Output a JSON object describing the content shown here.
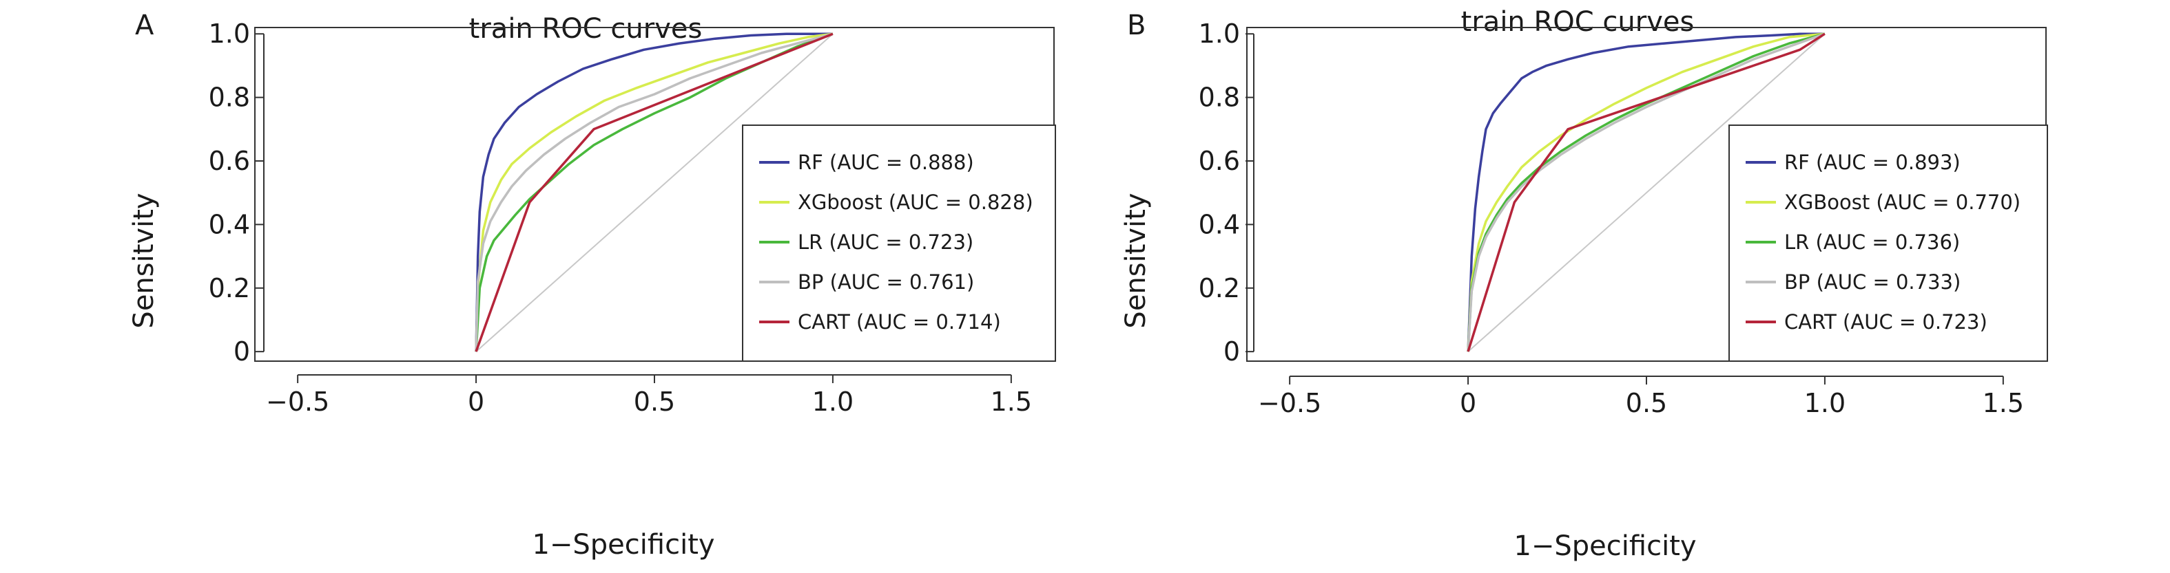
{
  "chart_data": [
    {
      "panel": "A",
      "type": "line",
      "title": "train ROC curves",
      "xlabel": "1−Specificity",
      "ylabel": "Sensitvity",
      "xlim": [
        -0.62,
        1.62
      ],
      "ylim": [
        -0.03,
        1.02
      ],
      "xticks": [
        -0.5,
        0,
        0.5,
        1.0,
        1.5
      ],
      "xtick_labels": [
        "−0.5",
        "0",
        "0.5",
        "1.0",
        "1.5"
      ],
      "yticks": [
        0,
        0.2,
        0.4,
        0.6,
        0.8,
        1.0
      ],
      "ytick_labels": [
        "0",
        "0.2",
        "0.4",
        "0.6",
        "0.8",
        "1.0"
      ],
      "grid": false,
      "legend_position": "bottom-right",
      "reference_line": {
        "x": [
          0,
          1
        ],
        "y": [
          0,
          1
        ],
        "color": "#c8c8c8"
      },
      "series": [
        {
          "name": "RF (AUC = 0.888)",
          "color": "#3b3f9e",
          "x": [
            0,
            0.005,
            0.01,
            0.02,
            0.035,
            0.05,
            0.08,
            0.12,
            0.17,
            0.23,
            0.3,
            0.38,
            0.47,
            0.57,
            0.67,
            0.77,
            0.87,
            0.95,
            1.0
          ],
          "y": [
            0,
            0.3,
            0.44,
            0.55,
            0.62,
            0.67,
            0.72,
            0.77,
            0.81,
            0.85,
            0.89,
            0.92,
            0.95,
            0.97,
            0.985,
            0.995,
            1.0,
            1.0,
            1.0
          ]
        },
        {
          "name": "XGboost (AUC = 0.828)",
          "color": "#d6ec4e",
          "x": [
            0,
            0.005,
            0.02,
            0.04,
            0.07,
            0.1,
            0.15,
            0.21,
            0.28,
            0.36,
            0.45,
            0.55,
            0.65,
            0.75,
            0.85,
            0.93,
            1.0
          ],
          "y": [
            0,
            0.2,
            0.38,
            0.47,
            0.54,
            0.59,
            0.64,
            0.69,
            0.74,
            0.79,
            0.83,
            0.87,
            0.91,
            0.94,
            0.97,
            0.99,
            1.0
          ]
        },
        {
          "name": "LR (AUC = 0.723)",
          "color": "#49b83c",
          "x": [
            0,
            0.01,
            0.03,
            0.05,
            0.08,
            0.11,
            0.15,
            0.2,
            0.26,
            0.33,
            0.41,
            0.5,
            0.6,
            0.7,
            0.8,
            0.9,
            1.0
          ],
          "y": [
            0,
            0.2,
            0.3,
            0.35,
            0.39,
            0.43,
            0.48,
            0.53,
            0.59,
            0.65,
            0.7,
            0.75,
            0.8,
            0.86,
            0.91,
            0.96,
            1.0
          ]
        },
        {
          "name": "BP (AUC = 0.761)",
          "color": "#bfbfbf",
          "x": [
            0,
            0.005,
            0.02,
            0.04,
            0.07,
            0.1,
            0.14,
            0.19,
            0.25,
            0.32,
            0.4,
            0.5,
            0.6,
            0.7,
            0.8,
            0.9,
            1.0
          ],
          "y": [
            0,
            0.22,
            0.34,
            0.41,
            0.47,
            0.52,
            0.57,
            0.62,
            0.67,
            0.72,
            0.77,
            0.81,
            0.86,
            0.9,
            0.94,
            0.97,
            1.0
          ]
        },
        {
          "name": "CART (AUC = 0.714)",
          "color": "#b5253a",
          "x": [
            0,
            0.15,
            0.33,
            1.0
          ],
          "y": [
            0,
            0.47,
            0.7,
            1.0
          ]
        }
      ]
    },
    {
      "panel": "B",
      "type": "line",
      "title": "train ROC curves",
      "xlabel": "1−Specificity",
      "ylabel": "Sensitvity",
      "xlim": [
        -0.62,
        1.62
      ],
      "ylim": [
        -0.03,
        1.02
      ],
      "xticks": [
        -0.5,
        0,
        0.5,
        1.0,
        1.5
      ],
      "xtick_labels": [
        "−0.5",
        "0",
        "0.5",
        "1.0",
        "1.5"
      ],
      "yticks": [
        0,
        0.2,
        0.4,
        0.6,
        0.8,
        1.0
      ],
      "ytick_labels": [
        "0",
        "0.2",
        "0.4",
        "0.6",
        "0.8",
        "1.0"
      ],
      "grid": false,
      "legend_position": "bottom-right",
      "reference_line": {
        "x": [
          0,
          1
        ],
        "y": [
          0,
          1
        ],
        "color": "#c8c8c8"
      },
      "series": [
        {
          "name": "RF (AUC = 0.893)",
          "color": "#3b3f9e",
          "x": [
            0,
            0.005,
            0.01,
            0.02,
            0.03,
            0.04,
            0.05,
            0.07,
            0.09,
            0.12,
            0.15,
            0.18,
            0.22,
            0.28,
            0.35,
            0.45,
            0.55,
            0.65,
            0.75,
            0.85,
            0.93,
            1.0
          ],
          "y": [
            0,
            0.15,
            0.3,
            0.45,
            0.55,
            0.63,
            0.7,
            0.75,
            0.78,
            0.82,
            0.86,
            0.88,
            0.9,
            0.92,
            0.94,
            0.96,
            0.97,
            0.98,
            0.99,
            0.995,
            1.0,
            1.0
          ]
        },
        {
          "name": "XGBoost (AUC = 0.770)",
          "color": "#d6ec4e",
          "x": [
            0,
            0.01,
            0.03,
            0.05,
            0.08,
            0.11,
            0.15,
            0.2,
            0.26,
            0.33,
            0.41,
            0.5,
            0.6,
            0.7,
            0.8,
            0.9,
            1.0
          ],
          "y": [
            0,
            0.22,
            0.34,
            0.41,
            0.47,
            0.52,
            0.58,
            0.63,
            0.68,
            0.73,
            0.78,
            0.83,
            0.88,
            0.92,
            0.96,
            0.99,
            1.0
          ]
        },
        {
          "name": "LR (AUC = 0.736)",
          "color": "#49b83c",
          "x": [
            0,
            0.01,
            0.03,
            0.05,
            0.08,
            0.11,
            0.15,
            0.2,
            0.26,
            0.33,
            0.41,
            0.5,
            0.6,
            0.7,
            0.8,
            0.9,
            1.0
          ],
          "y": [
            0,
            0.2,
            0.31,
            0.37,
            0.43,
            0.48,
            0.53,
            0.58,
            0.63,
            0.68,
            0.73,
            0.78,
            0.83,
            0.88,
            0.93,
            0.97,
            1.0
          ]
        },
        {
          "name": "BP (AUC = 0.733)",
          "color": "#bfbfbf",
          "x": [
            0,
            0.01,
            0.03,
            0.05,
            0.08,
            0.11,
            0.15,
            0.2,
            0.26,
            0.33,
            0.41,
            0.5,
            0.6,
            0.7,
            0.8,
            0.9,
            1.0
          ],
          "y": [
            0,
            0.19,
            0.3,
            0.36,
            0.42,
            0.47,
            0.52,
            0.57,
            0.62,
            0.67,
            0.72,
            0.77,
            0.82,
            0.87,
            0.92,
            0.96,
            1.0
          ]
        },
        {
          "name": "CART (AUC = 0.723)",
          "color": "#b5253a",
          "x": [
            0,
            0.13,
            0.28,
            0.8,
            0.93,
            1.0
          ],
          "y": [
            0,
            0.47,
            0.7,
            0.9,
            0.95,
            1.0
          ]
        }
      ]
    }
  ]
}
